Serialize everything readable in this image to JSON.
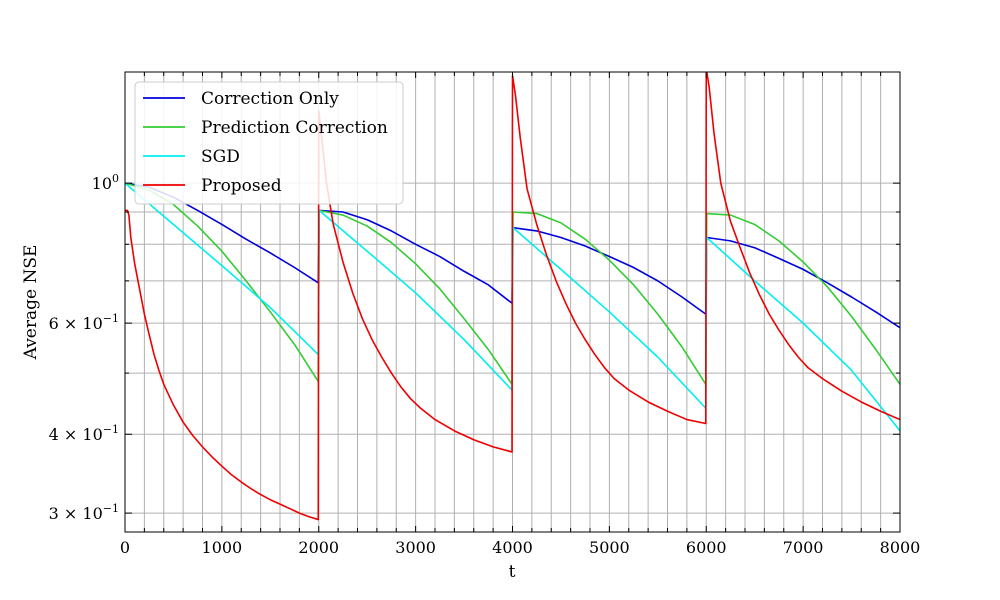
{
  "chart_data": {
    "type": "line",
    "title": "",
    "xlabel": "t",
    "ylabel": "Average NSE",
    "xlim": [
      0,
      8000
    ],
    "ylim": [
      0.28,
      1.5
    ],
    "yscale": "log",
    "grid": true,
    "legend_position": "top-left",
    "x_ticks": [
      0,
      1000,
      2000,
      3000,
      4000,
      5000,
      6000,
      7000,
      8000
    ],
    "x_tick_labels": [
      "0",
      "1000",
      "2000",
      "3000",
      "4000",
      "5000",
      "6000",
      "7000",
      "8000"
    ],
    "y_major_ticks": [
      {
        "value": 0.3,
        "base": "3 × 10",
        "exp": "−1"
      },
      {
        "value": 0.4,
        "base": "4 × 10",
        "exp": "−1"
      },
      {
        "value": 0.6,
        "base": "6 × 10",
        "exp": "−1"
      },
      {
        "value": 1.0,
        "base": "10",
        "exp": "0"
      }
    ],
    "series": [
      {
        "name": "Correction Only",
        "color": "#0000dd",
        "points": [
          [
            0,
            1.0
          ],
          [
            250,
            0.985
          ],
          [
            500,
            0.95
          ],
          [
            750,
            0.905
          ],
          [
            1000,
            0.86
          ],
          [
            1250,
            0.815
          ],
          [
            1500,
            0.775
          ],
          [
            1750,
            0.735
          ],
          [
            1995,
            0.695
          ],
          [
            2005,
            0.905
          ],
          [
            2250,
            0.9
          ],
          [
            2500,
            0.875
          ],
          [
            2750,
            0.84
          ],
          [
            3000,
            0.8
          ],
          [
            3250,
            0.765
          ],
          [
            3500,
            0.725
          ],
          [
            3750,
            0.69
          ],
          [
            3995,
            0.645
          ],
          [
            4005,
            0.85
          ],
          [
            4250,
            0.84
          ],
          [
            4500,
            0.82
          ],
          [
            4750,
            0.795
          ],
          [
            5000,
            0.765
          ],
          [
            5250,
            0.735
          ],
          [
            5500,
            0.7
          ],
          [
            5750,
            0.66
          ],
          [
            5995,
            0.62
          ],
          [
            6005,
            0.82
          ],
          [
            6250,
            0.81
          ],
          [
            6500,
            0.79
          ],
          [
            6750,
            0.76
          ],
          [
            7000,
            0.73
          ],
          [
            7250,
            0.695
          ],
          [
            7500,
            0.66
          ],
          [
            7750,
            0.625
          ],
          [
            8000,
            0.59
          ]
        ]
      },
      {
        "name": "Prediction Correction",
        "color": "#33cc33",
        "points": [
          [
            0,
            1.0
          ],
          [
            250,
            0.975
          ],
          [
            500,
            0.925
          ],
          [
            750,
            0.855
          ],
          [
            1000,
            0.78
          ],
          [
            1250,
            0.7
          ],
          [
            1500,
            0.625
          ],
          [
            1750,
            0.555
          ],
          [
            1995,
            0.485
          ],
          [
            2005,
            0.905
          ],
          [
            2250,
            0.89
          ],
          [
            2500,
            0.855
          ],
          [
            2750,
            0.805
          ],
          [
            3000,
            0.745
          ],
          [
            3250,
            0.68
          ],
          [
            3500,
            0.61
          ],
          [
            3750,
            0.545
          ],
          [
            3995,
            0.48
          ],
          [
            4005,
            0.9
          ],
          [
            4250,
            0.895
          ],
          [
            4500,
            0.865
          ],
          [
            4750,
            0.815
          ],
          [
            5000,
            0.755
          ],
          [
            5250,
            0.69
          ],
          [
            5500,
            0.62
          ],
          [
            5750,
            0.55
          ],
          [
            5995,
            0.48
          ],
          [
            6005,
            0.895
          ],
          [
            6250,
            0.89
          ],
          [
            6500,
            0.86
          ],
          [
            6750,
            0.81
          ],
          [
            7000,
            0.75
          ],
          [
            7250,
            0.685
          ],
          [
            7500,
            0.615
          ],
          [
            7750,
            0.545
          ],
          [
            8000,
            0.48
          ]
        ]
      },
      {
        "name": "SGD",
        "color": "#00eeee",
        "points": [
          [
            0,
            1.0
          ],
          [
            500,
            0.86
          ],
          [
            1000,
            0.74
          ],
          [
            1500,
            0.635
          ],
          [
            1995,
            0.535
          ],
          [
            2005,
            0.905
          ],
          [
            2500,
            0.78
          ],
          [
            3000,
            0.67
          ],
          [
            3500,
            0.565
          ],
          [
            3995,
            0.47
          ],
          [
            4005,
            0.85
          ],
          [
            4500,
            0.73
          ],
          [
            5000,
            0.625
          ],
          [
            5500,
            0.53
          ],
          [
            5995,
            0.44
          ],
          [
            6005,
            0.82
          ],
          [
            6500,
            0.7
          ],
          [
            7000,
            0.6
          ],
          [
            7500,
            0.505
          ],
          [
            8000,
            0.405
          ]
        ]
      },
      {
        "name": "Proposed",
        "color": "#ee0000",
        "points": [
          [
            0,
            0.905
          ],
          [
            25,
            0.905
          ],
          [
            40,
            0.89
          ],
          [
            60,
            0.82
          ],
          [
            100,
            0.745
          ],
          [
            150,
            0.68
          ],
          [
            200,
            0.62
          ],
          [
            250,
            0.575
          ],
          [
            300,
            0.535
          ],
          [
            350,
            0.505
          ],
          [
            400,
            0.48
          ],
          [
            500,
            0.445
          ],
          [
            600,
            0.418
          ],
          [
            700,
            0.398
          ],
          [
            800,
            0.382
          ],
          [
            900,
            0.368
          ],
          [
            1000,
            0.356
          ],
          [
            1100,
            0.345
          ],
          [
            1200,
            0.336
          ],
          [
            1300,
            0.328
          ],
          [
            1400,
            0.321
          ],
          [
            1500,
            0.315
          ],
          [
            1600,
            0.31
          ],
          [
            1700,
            0.305
          ],
          [
            1800,
            0.3
          ],
          [
            1900,
            0.296
          ],
          [
            1995,
            0.293
          ],
          [
            2000,
            1.3
          ],
          [
            2030,
            1.18
          ],
          [
            2080,
            1.0
          ],
          [
            2150,
            0.86
          ],
          [
            2250,
            0.75
          ],
          [
            2350,
            0.67
          ],
          [
            2450,
            0.61
          ],
          [
            2550,
            0.565
          ],
          [
            2650,
            0.53
          ],
          [
            2750,
            0.5
          ],
          [
            2850,
            0.475
          ],
          [
            2950,
            0.455
          ],
          [
            3050,
            0.44
          ],
          [
            3200,
            0.422
          ],
          [
            3400,
            0.405
          ],
          [
            3600,
            0.392
          ],
          [
            3800,
            0.382
          ],
          [
            3995,
            0.375
          ],
          [
            4000,
            1.48
          ],
          [
            4030,
            1.38
          ],
          [
            4080,
            1.18
          ],
          [
            4150,
            0.98
          ],
          [
            4250,
            0.86
          ],
          [
            4350,
            0.77
          ],
          [
            4450,
            0.7
          ],
          [
            4550,
            0.645
          ],
          [
            4650,
            0.6
          ],
          [
            4750,
            0.565
          ],
          [
            4850,
            0.535
          ],
          [
            4950,
            0.51
          ],
          [
            5050,
            0.49
          ],
          [
            5200,
            0.47
          ],
          [
            5400,
            0.45
          ],
          [
            5600,
            0.435
          ],
          [
            5800,
            0.422
          ],
          [
            5995,
            0.416
          ],
          [
            6000,
            1.52
          ],
          [
            6030,
            1.42
          ],
          [
            6080,
            1.2
          ],
          [
            6150,
            1.0
          ],
          [
            6250,
            0.87
          ],
          [
            6350,
            0.79
          ],
          [
            6450,
            0.72
          ],
          [
            6550,
            0.665
          ],
          [
            6650,
            0.62
          ],
          [
            6750,
            0.585
          ],
          [
            6850,
            0.555
          ],
          [
            6950,
            0.53
          ],
          [
            7050,
            0.51
          ],
          [
            7200,
            0.49
          ],
          [
            7400,
            0.468
          ],
          [
            7600,
            0.45
          ],
          [
            7800,
            0.435
          ],
          [
            8000,
            0.422
          ]
        ]
      }
    ]
  }
}
